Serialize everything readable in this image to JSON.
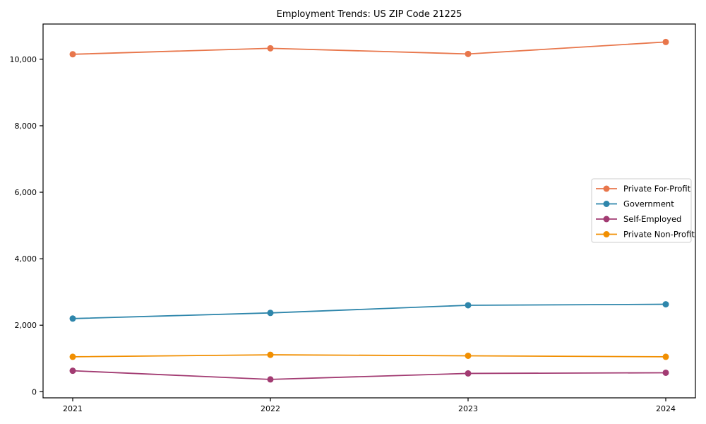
{
  "chart_data": {
    "type": "line",
    "title": "Employment Trends: US ZIP Code 21225",
    "xlabel": "",
    "ylabel": "",
    "x": [
      2021,
      2022,
      2023,
      2024
    ],
    "x_tick_labels": [
      "2021",
      "2022",
      "2023",
      "2024"
    ],
    "series": [
      {
        "name": "Private For-Profit",
        "color": "#e8764b",
        "values": [
          10150,
          10330,
          10160,
          10520
        ]
      },
      {
        "name": "Government",
        "color": "#2e86ab",
        "values": [
          2200,
          2370,
          2600,
          2630
        ]
      },
      {
        "name": "Self-Employed",
        "color": "#a23b72",
        "values": [
          630,
          370,
          550,
          570
        ]
      },
      {
        "name": "Private Non-Profit",
        "color": "#f18f01",
        "values": [
          1050,
          1110,
          1080,
          1050
        ]
      }
    ],
    "yticks": {
      "values": [
        0,
        2000,
        4000,
        6000,
        8000,
        10000
      ],
      "labels": [
        "0",
        "2,000",
        "4,000",
        "6,000",
        "8,000",
        "10,000"
      ]
    },
    "xlim": [
      2020.85,
      2024.15
    ],
    "ylim": [
      -185,
      11060
    ],
    "grid": false,
    "legend": {
      "position": "right",
      "border_color": "#cccccc",
      "background": "#ffffff"
    },
    "spine_color": "#000000",
    "background": "#ffffff"
  }
}
